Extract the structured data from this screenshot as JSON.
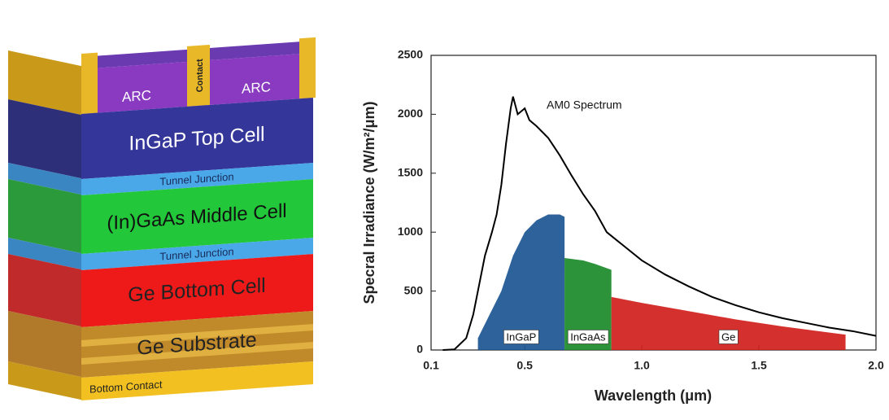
{
  "diagram": {
    "labels": {
      "arc_left": "ARC",
      "arc_right": "ARC",
      "contact": "Contact",
      "top_cell": "InGaP Top Cell",
      "tunnel_1": "Tunnel Junction",
      "middle_cell": "(In)GaAs Middle Cell",
      "tunnel_2": "Tunnel Junction",
      "bottom_cell": "Ge Bottom Cell",
      "substrate": "Ge Substrate",
      "bottom_contact": "Bottom Contact"
    }
  },
  "chart_data": {
    "type": "line",
    "x_label": "Wavelength (μm)",
    "y_label": "Specral Irradiance (W/m²/μm)",
    "xlim": [
      0.1,
      2.0
    ],
    "xticks": [
      0.1,
      0.5,
      {
        "value": 1,
        "label": "1.0"
      },
      1.5,
      {
        "value": 2,
        "label": "2.0"
      }
    ],
    "ylim": [
      0,
      2500
    ],
    "yticks": [
      0,
      500,
      1000,
      1500,
      2000,
      2500
    ],
    "series": [
      {
        "name": "AM0 Spectrum",
        "type": "line",
        "color": "#000000",
        "x": [
          0.15,
          0.2,
          0.25,
          0.28,
          0.3,
          0.33,
          0.36,
          0.38,
          0.4,
          0.42,
          0.44,
          0.45,
          0.47,
          0.5,
          0.52,
          0.55,
          0.6,
          0.65,
          0.7,
          0.75,
          0.8,
          0.85,
          0.9,
          1.0,
          1.1,
          1.2,
          1.3,
          1.4,
          1.5,
          1.6,
          1.7,
          1.8,
          1.9,
          2.0
        ],
        "values": [
          0,
          5,
          100,
          300,
          500,
          800,
          1000,
          1150,
          1400,
          1750,
          2050,
          2150,
          2000,
          2050,
          1950,
          1900,
          1800,
          1650,
          1480,
          1320,
          1180,
          1000,
          920,
          760,
          640,
          540,
          450,
          380,
          320,
          270,
          230,
          190,
          160,
          120
        ]
      },
      {
        "name": "InGaP",
        "type": "area",
        "color": "#1b5592",
        "x": [
          0.3,
          0.35,
          0.4,
          0.45,
          0.5,
          0.55,
          0.6,
          0.65,
          0.67
        ],
        "values": [
          100,
          300,
          500,
          800,
          1000,
          1100,
          1150,
          1150,
          1130
        ]
      },
      {
        "name": "InGaAs",
        "type": "area",
        "color": "#1a8a2a",
        "x": [
          0.67,
          0.75,
          0.8,
          0.87
        ],
        "values": [
          780,
          760,
          730,
          680
        ]
      },
      {
        "name": "Ge",
        "type": "area",
        "color": "#d0201c",
        "x": [
          0.87,
          1.0,
          1.2,
          1.4,
          1.6,
          1.87
        ],
        "values": [
          450,
          400,
          330,
          260,
          200,
          130
        ]
      }
    ]
  }
}
